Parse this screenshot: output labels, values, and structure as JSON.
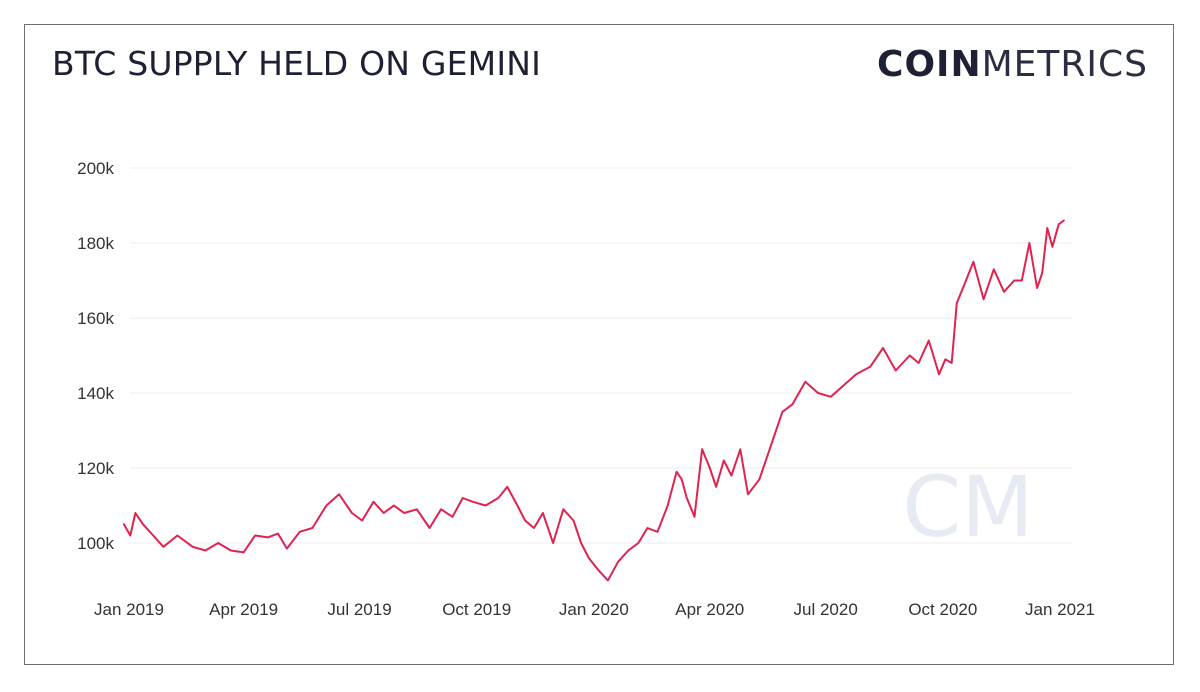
{
  "header": {
    "title": "BTC SUPPLY HELD ON GEMINI",
    "logo_bold": "COIN",
    "logo_light": "METRICS"
  },
  "watermark": {
    "text": "CM"
  },
  "chart_data": {
    "type": "line",
    "title": "BTC SUPPLY HELD ON GEMINI",
    "xlabel": "",
    "ylabel": "",
    "ylim": [
      88000,
      206000
    ],
    "y_ticks": [
      100000,
      120000,
      140000,
      160000,
      180000,
      200000
    ],
    "y_tick_labels": [
      "100k",
      "120k",
      "140k",
      "160k",
      "180k",
      "200k"
    ],
    "x_ticks": [
      "2019-01-01",
      "2019-04-01",
      "2019-07-01",
      "2019-10-01",
      "2020-01-01",
      "2020-04-01",
      "2020-07-01",
      "2020-10-01",
      "2021-01-01"
    ],
    "x_tick_labels": [
      "Jan 2019",
      "Apr 2019",
      "Jul 2019",
      "Oct 2019",
      "Jan 2020",
      "Apr 2020",
      "Jul 2020",
      "Oct 2020",
      "Jan 2021"
    ],
    "grid": true,
    "legend": "none",
    "line_color": "#e0234e",
    "series": [
      {
        "x": [
          "2018-12-28",
          "2019-01-02",
          "2019-01-06",
          "2019-01-12",
          "2019-01-20",
          "2019-01-28",
          "2019-02-08",
          "2019-02-20",
          "2019-03-02",
          "2019-03-12",
          "2019-03-22",
          "2019-04-01",
          "2019-04-10",
          "2019-04-20",
          "2019-04-28",
          "2019-05-05",
          "2019-05-15",
          "2019-05-25",
          "2019-06-05",
          "2019-06-15",
          "2019-06-25",
          "2019-07-03",
          "2019-07-12",
          "2019-07-20",
          "2019-07-28",
          "2019-08-05",
          "2019-08-15",
          "2019-08-25",
          "2019-09-03",
          "2019-09-12",
          "2019-09-20",
          "2019-09-28",
          "2019-10-08",
          "2019-10-18",
          "2019-10-25",
          "2019-11-02",
          "2019-11-08",
          "2019-11-15",
          "2019-11-22",
          "2019-11-30",
          "2019-12-08",
          "2019-12-16",
          "2019-12-22",
          "2019-12-28",
          "2020-01-04",
          "2020-01-12",
          "2020-01-20",
          "2020-01-28",
          "2020-02-05",
          "2020-02-12",
          "2020-02-20",
          "2020-02-28",
          "2020-03-06",
          "2020-03-10",
          "2020-03-14",
          "2020-03-20",
          "2020-03-26",
          "2020-04-01",
          "2020-04-06",
          "2020-04-12",
          "2020-04-18",
          "2020-04-25",
          "2020-05-01",
          "2020-05-10",
          "2020-05-20",
          "2020-05-28",
          "2020-06-05",
          "2020-06-15",
          "2020-06-25",
          "2020-07-05",
          "2020-07-15",
          "2020-07-25",
          "2020-08-05",
          "2020-08-15",
          "2020-08-25",
          "2020-09-05",
          "2020-09-12",
          "2020-09-20",
          "2020-09-28",
          "2020-10-03",
          "2020-10-08",
          "2020-10-12",
          "2020-10-18",
          "2020-10-25",
          "2020-11-02",
          "2020-11-10",
          "2020-11-18",
          "2020-11-26",
          "2020-12-02",
          "2020-12-08",
          "2020-12-14",
          "2020-12-18",
          "2020-12-22",
          "2020-12-26",
          "2020-12-31",
          "2021-01-04"
        ],
        "y": [
          105000,
          102000,
          108000,
          105000,
          102000,
          99000,
          102000,
          99000,
          98000,
          100000,
          98000,
          97500,
          102000,
          101500,
          102500,
          98500,
          103000,
          104000,
          110000,
          113000,
          108000,
          106000,
          111000,
          108000,
          110000,
          108000,
          109000,
          104000,
          109000,
          107000,
          112000,
          111000,
          110000,
          112000,
          115000,
          110000,
          106000,
          104000,
          108000,
          100000,
          109000,
          106000,
          100000,
          96000,
          93000,
          90000,
          95000,
          98000,
          100000,
          104000,
          103000,
          110000,
          119000,
          117000,
          112000,
          107000,
          125000,
          120000,
          115000,
          122000,
          118000,
          125000,
          113000,
          117000,
          127000,
          135000,
          137000,
          143000,
          140000,
          139000,
          142000,
          145000,
          147000,
          152000,
          146000,
          150000,
          148000,
          154000,
          145000,
          149000,
          148000,
          164000,
          169000,
          175000,
          165000,
          173000,
          167000,
          170000,
          170000,
          180000,
          168000,
          172000,
          184000,
          179000,
          185000,
          186000
        ]
      }
    ]
  }
}
